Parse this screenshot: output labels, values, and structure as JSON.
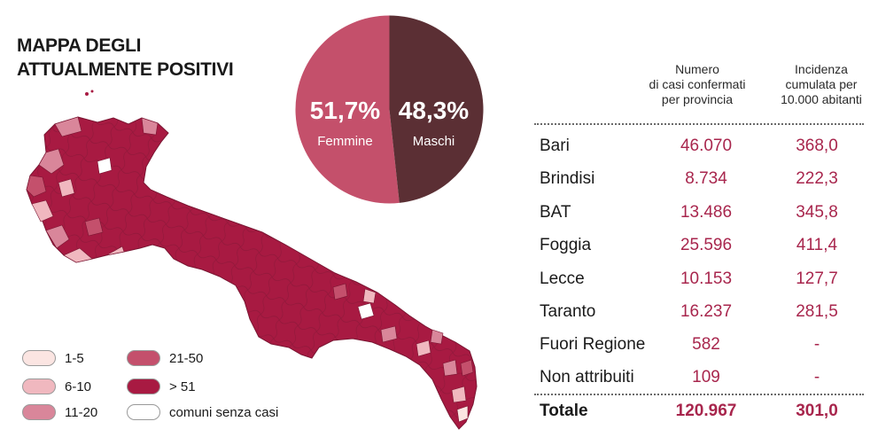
{
  "title": {
    "line1": "MAPPA DEGLI",
    "line2": "ATTUALMENTE POSITIVI"
  },
  "colors": {
    "class_1_5": "#fbe5e2",
    "class_6_10": "#f0b8bf",
    "class_11_20": "#d9869a",
    "class_21_50": "#c4506c",
    "class_gt_51": "#a81a42",
    "no_cases": "#ffffff",
    "femmine": "#c4506b",
    "maschi": "#5b2f34",
    "value_text": "#a8264d"
  },
  "legend": {
    "items": [
      {
        "label": "1-5",
        "color": "#fbe5e2"
      },
      {
        "label": "6-10",
        "color": "#f0b8bf"
      },
      {
        "label": "11-20",
        "color": "#d9869a"
      },
      {
        "label": "21-50",
        "color": "#c4506c"
      },
      {
        "label": "> 51",
        "color": "#a81a42"
      },
      {
        "label": "comuni senza casi",
        "color": "#ffffff"
      }
    ]
  },
  "table": {
    "col1_header": [
      "Numero",
      "di casi confermati",
      "per provincia"
    ],
    "col2_header": [
      "Incidenza",
      "cumulata per",
      "10.000 abitanti"
    ],
    "rows": [
      {
        "name": "Bari",
        "cases": "46.070",
        "incidence": "368,0"
      },
      {
        "name": "Brindisi",
        "cases": "8.734",
        "incidence": "222,3"
      },
      {
        "name": "BAT",
        "cases": "13.486",
        "incidence": "345,8"
      },
      {
        "name": "Foggia",
        "cases": "25.596",
        "incidence": "411,4"
      },
      {
        "name": "Lecce",
        "cases": "10.153",
        "incidence": "127,7"
      },
      {
        "name": "Taranto",
        "cases": "16.237",
        "incidence": "281,5"
      },
      {
        "name": "Fuori Regione",
        "cases": "582",
        "incidence": "-"
      },
      {
        "name": "Non attribuiti",
        "cases": "109",
        "incidence": "-"
      }
    ],
    "total": {
      "name": "Totale",
      "cases": "120.967",
      "incidence": "301,0"
    }
  },
  "chart_data": [
    {
      "type": "pie",
      "series": [
        {
          "name": "Femmine",
          "value": 51.7,
          "label": "51,7%",
          "color": "#c4506b"
        },
        {
          "name": "Maschi",
          "value": 48.3,
          "label": "48,3%",
          "color": "#5b2f34"
        }
      ]
    },
    {
      "type": "table",
      "columns": [
        "",
        "Numero di casi confermati per provincia",
        "Incidenza cumulata per 10.000 abitanti"
      ],
      "rows": [
        [
          "Bari",
          46070,
          368.0
        ],
        [
          "Brindisi",
          8734,
          222.3
        ],
        [
          "BAT",
          13486,
          345.8
        ],
        [
          "Foggia",
          25596,
          411.4
        ],
        [
          "Lecce",
          10153,
          127.7
        ],
        [
          "Taranto",
          16237,
          281.5
        ],
        [
          "Fuori Regione",
          582,
          null
        ],
        [
          "Non attribuiti",
          109,
          null
        ],
        [
          "Totale",
          120967,
          301.0
        ]
      ]
    }
  ]
}
